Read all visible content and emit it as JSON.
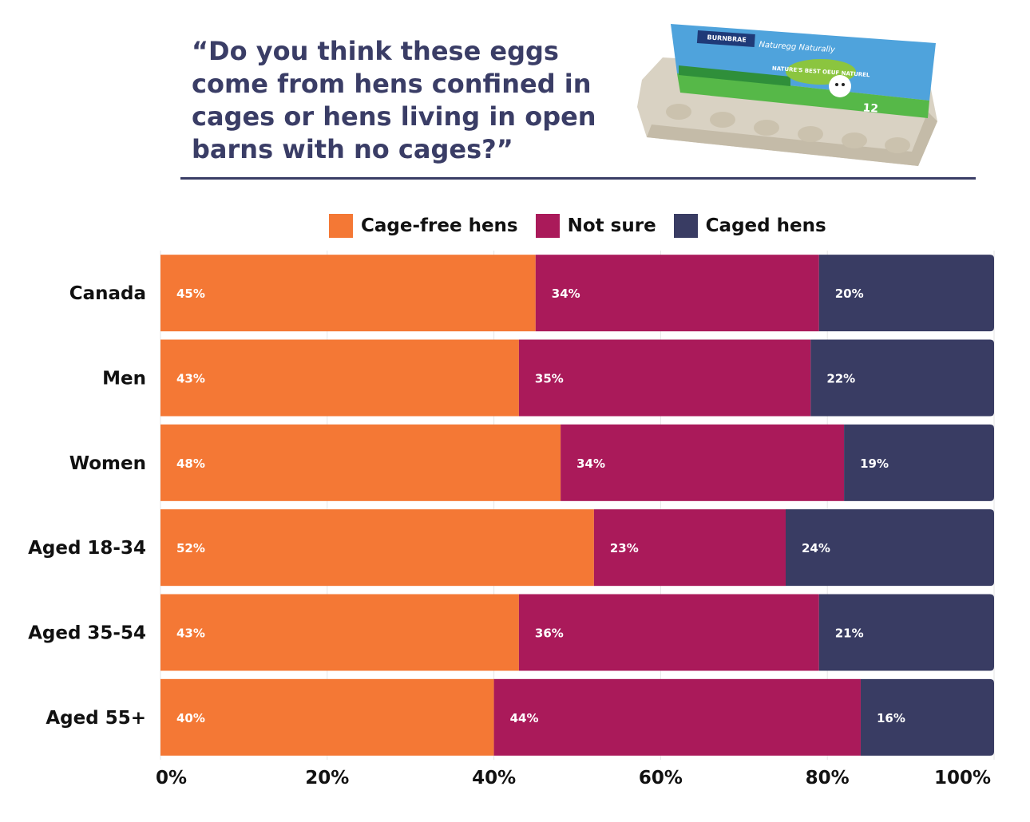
{
  "question": {
    "lines": [
      "“Do you think these eggs",
      "come from hens confined in",
      "cages or hens living in open",
      "barns with no cages?”"
    ]
  },
  "product_image": {
    "icon": "egg-carton-illustration",
    "brand_text": "BURNBRAE",
    "product_text": "Naturegg Naturally",
    "badge_text": "NATURE'S BEST OEUF NATUREL",
    "count_text": "12"
  },
  "colors": {
    "cage_free": "#f47835",
    "not_sure": "#aa1a5a",
    "caged": "#393c63",
    "title": "#3a3d66"
  },
  "chart_data": {
    "type": "bar",
    "orientation": "horizontal",
    "stacked": true,
    "categories": [
      "Canada",
      "Men",
      "Women",
      "Aged 18-34",
      "Aged 35-54",
      "Aged 55+"
    ],
    "series": [
      {
        "name": "Cage-free hens",
        "values": [
          45,
          43,
          48,
          52,
          43,
          40
        ],
        "labels": [
          "45%",
          "43%",
          "48%",
          "52%",
          "43%",
          "40%"
        ]
      },
      {
        "name": "Not sure",
        "values": [
          34,
          35,
          34,
          23,
          36,
          44
        ],
        "labels": [
          "34%",
          "35%",
          "34%",
          "23%",
          "36%",
          "44%"
        ]
      },
      {
        "name": "Caged hens",
        "values": [
          20,
          22,
          19,
          24,
          21,
          16
        ],
        "labels": [
          "20%",
          "22%",
          "19%",
          "24%",
          "21%",
          "16%"
        ]
      }
    ],
    "xticks": [
      "0%",
      "20%",
      "40%",
      "60%",
      "80%",
      "100%"
    ],
    "xtick_values": [
      0,
      20,
      40,
      60,
      80,
      100
    ],
    "xlim": [
      0,
      100
    ],
    "legend_position": "top",
    "grid": true
  }
}
